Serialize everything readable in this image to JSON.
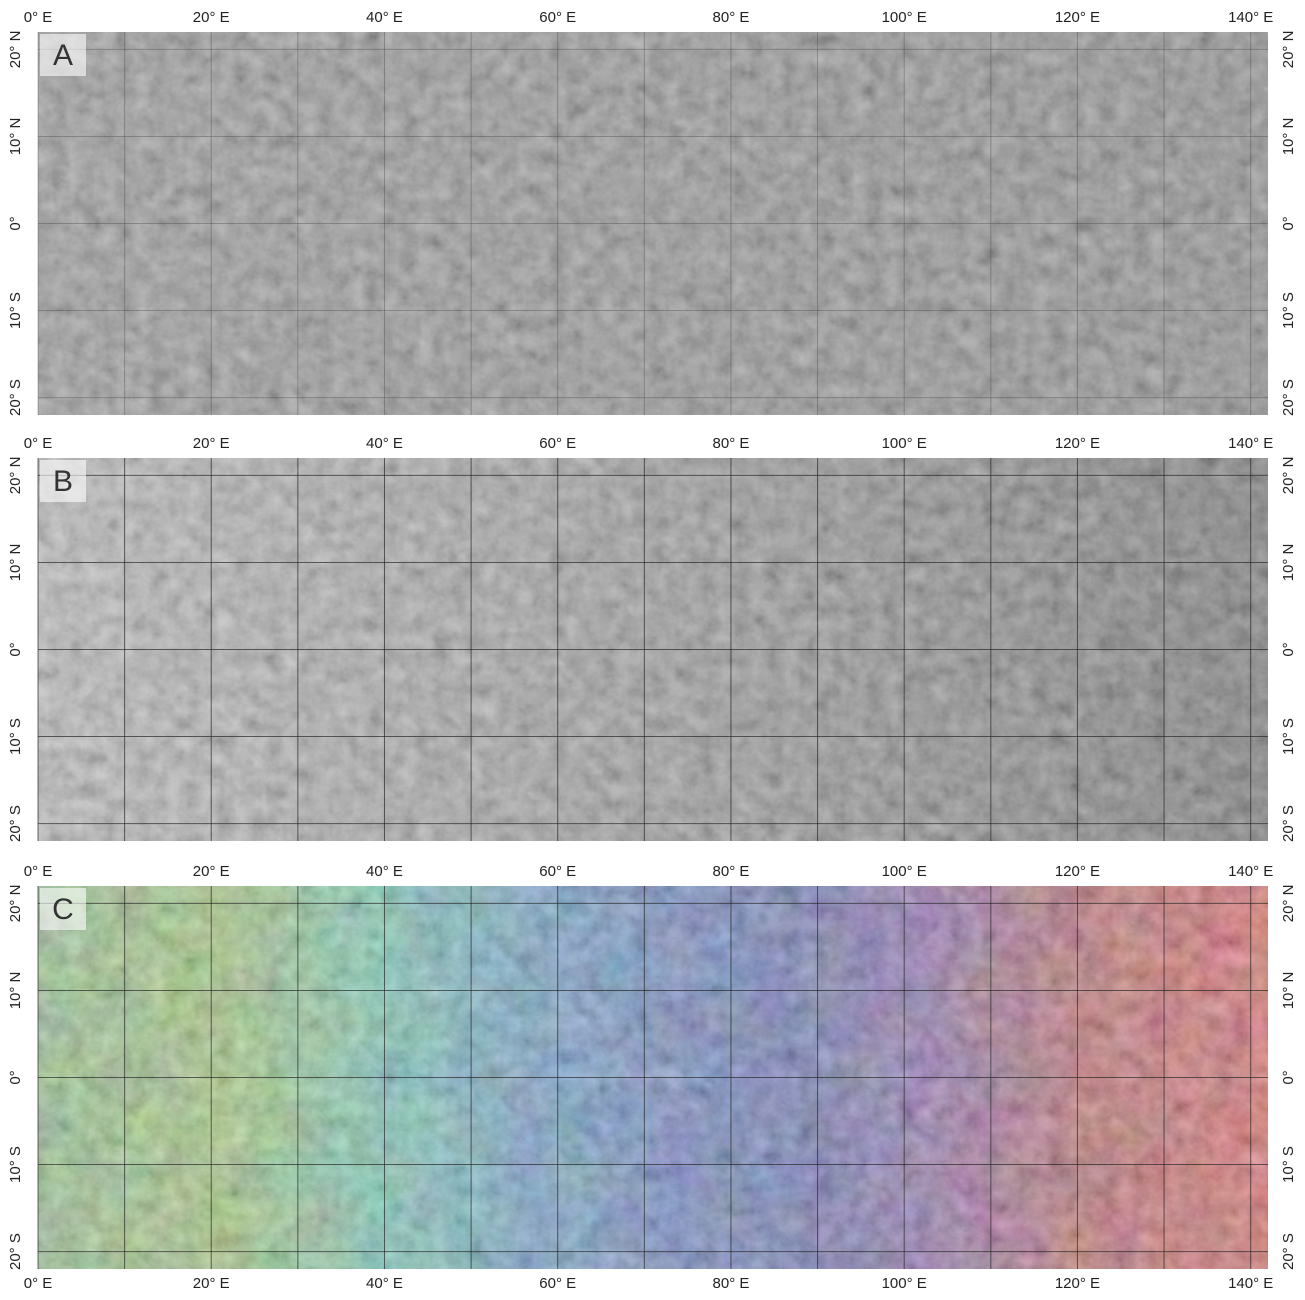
{
  "map": {
    "lon_range": [
      0,
      142
    ],
    "lat_range": [
      -22,
      22
    ],
    "lon_grid": [
      0,
      10,
      20,
      30,
      40,
      50,
      60,
      70,
      80,
      90,
      100,
      110,
      120,
      130,
      140
    ],
    "lat_grid": [
      -20,
      -10,
      0,
      10,
      20
    ],
    "lon_ticks": [
      {
        "value": 0,
        "label": "0° E"
      },
      {
        "value": 20,
        "label": "20° E"
      },
      {
        "value": 40,
        "label": "40° E"
      },
      {
        "value": 60,
        "label": "60° E"
      },
      {
        "value": 80,
        "label": "80° E"
      },
      {
        "value": 100,
        "label": "100° E"
      },
      {
        "value": 120,
        "label": "120° E"
      },
      {
        "value": 140,
        "label": "140° E"
      }
    ],
    "lat_ticks": [
      {
        "value": 20,
        "label": "20° N"
      },
      {
        "value": 10,
        "label": "10° N"
      },
      {
        "value": 0,
        "label": "0°"
      },
      {
        "value": -10,
        "label": "10° S"
      },
      {
        "value": -20,
        "label": "20° S"
      }
    ],
    "panels": [
      {
        "label": "A",
        "colormap": "gray"
      },
      {
        "label": "B",
        "colormap": "gray-ramp"
      },
      {
        "label": "C",
        "colormap": "rainbow"
      }
    ]
  }
}
